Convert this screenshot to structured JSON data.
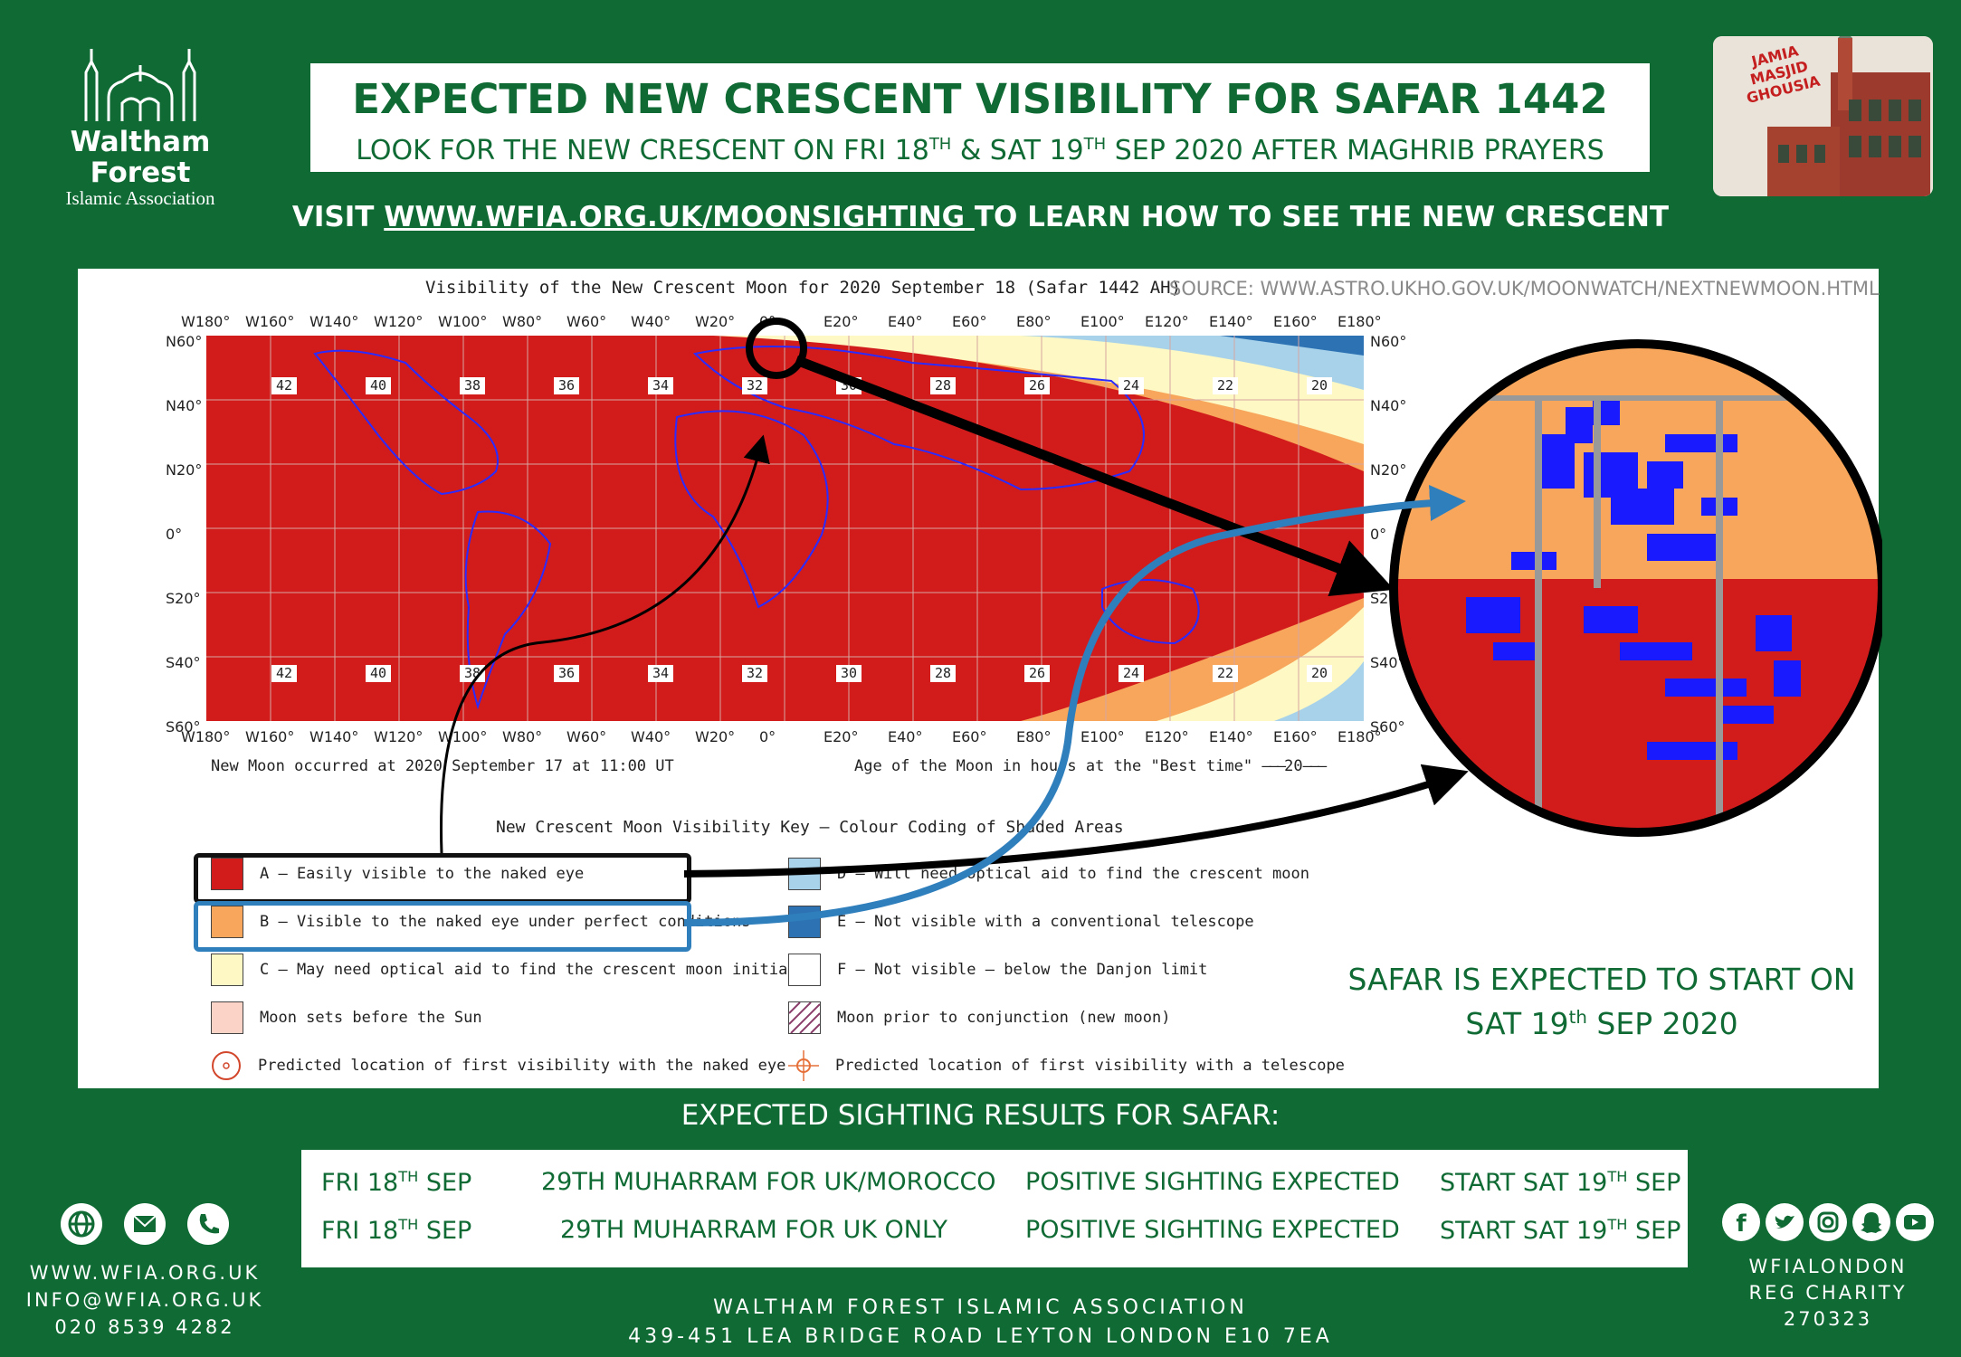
{
  "org": {
    "logo_name": "Waltham Forest",
    "logo_sub": "Islamic Association"
  },
  "header": {
    "title": "EXPECTED NEW CRESCENT VISIBILITY FOR SAFAR 1442",
    "subtitle_a": "LOOK FOR THE NEW CRESCENT ON FRI 18",
    "subtitle_sup1": "TH",
    "subtitle_b": " & SAT 19",
    "subtitle_sup2": "TH",
    "subtitle_c": " SEP 2020 AFTER MAGHRIB PRAYERS"
  },
  "mosque_badge": {
    "line1": "JAMIA",
    "line2": "MASJID",
    "line3": "GHOUSIA"
  },
  "visit": {
    "prefix": "VISIT ",
    "link": "WWW.WFIA.ORG.UK/MOONSIGHTING ",
    "suffix": "TO LEARN HOW TO SEE THE NEW CRESCENT"
  },
  "map": {
    "title": "Visibility of the New Crescent Moon for 2020 September 18 (Safar 1442 AH)",
    "source": "SOURCE: WWW.ASTRO.UKHO.GOV.UK/MOONWATCH/NEXTNEWMOON.HTML",
    "lon_labels": [
      "W180°",
      "W160°",
      "W140°",
      "W120°",
      "W100°",
      "W80°",
      "W60°",
      "W40°",
      "W20°",
      "0°",
      "E20°",
      "E40°",
      "E60°",
      "E80°",
      "E100°",
      "E120°",
      "E140°",
      "E160°",
      "E180°"
    ],
    "lat_labels_left": [
      "N60°",
      "N40°",
      "N20°",
      "0°",
      "S20°",
      "S40°",
      "S60°"
    ],
    "lat_labels_right": [
      "N60°",
      "N40°",
      "N20°",
      "0°",
      "S20°",
      "S40°",
      "S60°"
    ],
    "age_top": [
      "42",
      "40",
      "38",
      "36",
      "34",
      "32",
      "30",
      "28",
      "26",
      "24",
      "22",
      "20"
    ],
    "age_bottom": [
      "42",
      "40",
      "38",
      "36",
      "34",
      "32",
      "30",
      "28",
      "26",
      "24",
      "22",
      "20"
    ],
    "new_moon_note": "New Moon occurred at 2020 September 17 at 11:00 UT",
    "age_note": "Age of the Moon in hours at the \"Best time\"",
    "age_legend_value": "20"
  },
  "key": {
    "title": "New Crescent Moon Visibility Key — Colour Coding of Shaded Areas",
    "items_left": [
      {
        "label": "A — Easily visible to the naked eye",
        "color": "#d21c1c"
      },
      {
        "label": "B — Visible to the naked eye under perfect conditions",
        "color": "#f7a65b"
      },
      {
        "label": "C — May need optical aid to find the crescent moon initially",
        "color": "#fdf8c4"
      },
      {
        "label": "Moon sets before the Sun",
        "color": "#fbd3c7"
      },
      {
        "label": "Predicted location of first visibility with the naked eye",
        "color": "#ffffff"
      }
    ],
    "items_right": [
      {
        "label": "D — Will need optical aid to find the crescent moon",
        "color": "#a8d2ea"
      },
      {
        "label": "E — Not visible with a conventional telescope",
        "color": "#2d73b4"
      },
      {
        "label": "F — Not visible — below the Danjon limit",
        "color": "#ffffff"
      },
      {
        "label": "Moon prior to conjunction (new moon)",
        "color": "#ffffff"
      },
      {
        "label": "Predicted location of first visibility with a telescope",
        "color": "#ffffff"
      }
    ]
  },
  "safar_start": {
    "line1": "SAFAR IS EXPECTED TO START ON",
    "line2_a": "SAT 19",
    "line2_sup": "th",
    "line2_b": " SEP 2020"
  },
  "results": {
    "heading": "EXPECTED SIGHTING RESULTS FOR SAFAR:",
    "rows": [
      {
        "date_a": "FRI 18",
        "date_sup": "TH",
        "date_b": " SEP",
        "day": "29TH MUHARRAM FOR UK/MOROCCO",
        "outcome": "POSITIVE SIGHTING EXPECTED",
        "start_a": "START SAT 19",
        "start_sup": "TH",
        "start_b": " SEP"
      },
      {
        "date_a": "FRI 18",
        "date_sup": "TH",
        "date_b": " SEP",
        "day": "29TH MUHARRAM FOR UK ONLY",
        "outcome": "POSITIVE SIGHTING EXPECTED",
        "start_a": "START SAT 19",
        "start_sup": "TH",
        "start_b": " SEP"
      }
    ]
  },
  "contact": {
    "web": "WWW.WFIA.ORG.UK",
    "email": "INFO@WFIA.ORG.UK",
    "phone": "020 8539 4282"
  },
  "footer": {
    "org": "WALTHAM FOREST ISLAMIC ASSOCIATION",
    "address": "439-451 LEA BRIDGE ROAD LEYTON LONDON E10 7EA"
  },
  "social": {
    "handle": "WFIALONDON",
    "charity_label": "REG CHARITY",
    "charity_number": "270323"
  }
}
